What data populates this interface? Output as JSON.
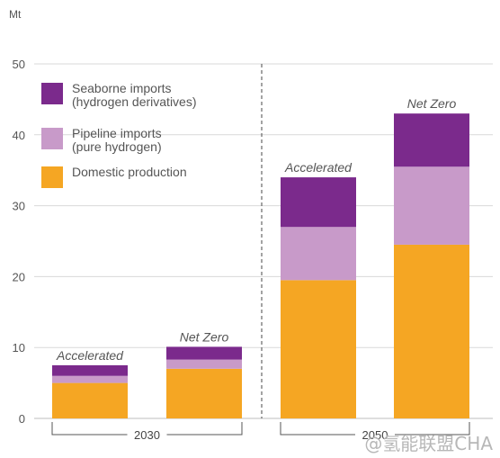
{
  "chart_data": {
    "type": "bar",
    "stacked": true,
    "ylabel": "Mt",
    "ylim": [
      0,
      50
    ],
    "yticks": [
      0,
      10,
      20,
      30,
      40,
      50
    ],
    "grid": true,
    "legend_position": "top-left",
    "groups": [
      {
        "label": "2030",
        "bars": [
          {
            "label": "Accelerated",
            "values": {
              "domestic": 5,
              "pipeline": 1,
              "seaborne": 1.5
            }
          },
          {
            "label": "Net Zero",
            "values": {
              "domestic": 7,
              "pipeline": 1.3,
              "seaborne": 1.8
            }
          }
        ]
      },
      {
        "label": "2050",
        "bars": [
          {
            "label": "Accelerated",
            "values": {
              "domestic": 19.5,
              "pipeline": 7.5,
              "seaborne": 7
            }
          },
          {
            "label": "Net Zero",
            "values": {
              "domestic": 24.5,
              "pipeline": 11,
              "seaborne": 7.5
            }
          }
        ]
      }
    ],
    "series": [
      {
        "key": "domestic",
        "name": "Domestic production",
        "color": "#f5a623"
      },
      {
        "key": "pipeline",
        "name": "Pipeline imports\n(pure hydrogen)",
        "color": "#c89ac9"
      },
      {
        "key": "seaborne",
        "name": "Seaborne imports\n(hydrogen derivatives)",
        "color": "#7b2a8c"
      }
    ]
  },
  "watermark": "@氢能联盟CHA"
}
